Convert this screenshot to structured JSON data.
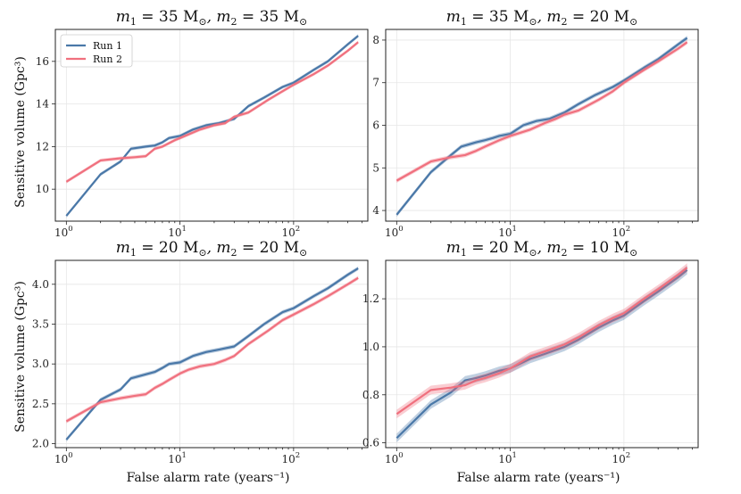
{
  "figure": {
    "xlabel": "False alarm rate (years⁻¹)",
    "ylabel": "Sensitive volume (Gpc³)"
  },
  "legend": [
    {
      "label": "Run 1",
      "color": "#4a78a8"
    },
    {
      "label": "Run 2",
      "color": "#f0707e"
    }
  ],
  "chart_data": [
    {
      "type": "line",
      "title_parts": [
        "m",
        "1",
        " = 35 M",
        "⊙",
        ", m",
        "2",
        " = 35 M",
        "⊙"
      ],
      "xscale": "log",
      "xlim": [
        0.8,
        450
      ],
      "xticks": [
        {
          "v": 1,
          "label": "10"
        },
        {
          "v": 10,
          "label": "10"
        },
        {
          "v": 100,
          "label": "10"
        }
      ],
      "xtick_exps": [
        "0",
        "1",
        "2"
      ],
      "ylim": [
        8.5,
        17.5
      ],
      "yticks": [
        10,
        12,
        14,
        16
      ],
      "yticks_labels": [
        "10",
        "12",
        "14",
        "16"
      ],
      "band": 0.08,
      "series": [
        {
          "name": "Run 1",
          "color": "#4a78a8",
          "x": [
            1,
            2,
            3,
            3.7,
            5,
            6,
            7,
            8,
            10,
            13,
            17,
            22,
            30,
            40,
            55,
            80,
            100,
            150,
            200,
            300,
            370
          ],
          "y": [
            8.75,
            10.7,
            11.3,
            11.9,
            12.0,
            12.05,
            12.2,
            12.4,
            12.5,
            12.8,
            13.0,
            13.1,
            13.3,
            13.9,
            14.3,
            14.8,
            15.0,
            15.6,
            16.0,
            16.8,
            17.2
          ]
        },
        {
          "name": "Run 2",
          "color": "#f0707e",
          "x": [
            1,
            2,
            3,
            4,
            5,
            6,
            7,
            9,
            10,
            15,
            20,
            25,
            30,
            40,
            60,
            80,
            100,
            150,
            200,
            300,
            370
          ],
          "y": [
            10.35,
            11.35,
            11.45,
            11.5,
            11.55,
            11.9,
            12.0,
            12.3,
            12.4,
            12.8,
            13.0,
            13.1,
            13.4,
            13.6,
            14.2,
            14.6,
            14.9,
            15.4,
            15.8,
            16.5,
            16.9
          ]
        }
      ]
    },
    {
      "type": "line",
      "title_parts": [
        "m",
        "1",
        " = 35 M",
        "⊙",
        ", m",
        "2",
        " = 20 M",
        "⊙"
      ],
      "xscale": "log",
      "xlim": [
        0.8,
        450
      ],
      "xticks": [
        {
          "v": 1,
          "label": "10"
        },
        {
          "v": 10,
          "label": "10"
        },
        {
          "v": 100,
          "label": "10"
        }
      ],
      "xtick_exps": [
        "0",
        "1",
        "2"
      ],
      "ylim": [
        3.75,
        8.25
      ],
      "yticks": [
        4,
        5,
        6,
        7,
        8
      ],
      "yticks_labels": [
        "4",
        "5",
        "6",
        "7",
        "8"
      ],
      "band": 0.05,
      "series": [
        {
          "name": "Run 1",
          "color": "#4a78a8",
          "x": [
            1,
            2,
            3,
            3.7,
            5,
            6,
            7,
            8,
            10,
            13,
            17,
            22,
            30,
            40,
            55,
            80,
            100,
            150,
            200,
            300,
            360
          ],
          "y": [
            3.9,
            4.9,
            5.3,
            5.5,
            5.6,
            5.65,
            5.7,
            5.75,
            5.8,
            6.0,
            6.1,
            6.15,
            6.3,
            6.5,
            6.7,
            6.9,
            7.05,
            7.35,
            7.55,
            7.9,
            8.05
          ]
        },
        {
          "name": "Run 2",
          "color": "#f0707e",
          "x": [
            1,
            2,
            3,
            4,
            5,
            6,
            8,
            10,
            15,
            20,
            25,
            30,
            40,
            60,
            80,
            100,
            150,
            200,
            300,
            360
          ],
          "y": [
            4.7,
            5.15,
            5.25,
            5.3,
            5.4,
            5.5,
            5.65,
            5.75,
            5.9,
            6.05,
            6.15,
            6.25,
            6.35,
            6.6,
            6.8,
            7.0,
            7.3,
            7.5,
            7.8,
            7.95
          ]
        }
      ]
    },
    {
      "type": "line",
      "title_parts": [
        "m",
        "1",
        " = 20 M",
        "⊙",
        ", m",
        "2",
        " = 20 M",
        "⊙"
      ],
      "xscale": "log",
      "xlim": [
        0.8,
        450
      ],
      "xticks": [
        {
          "v": 1,
          "label": "10"
        },
        {
          "v": 10,
          "label": "10"
        },
        {
          "v": 100,
          "label": "10"
        }
      ],
      "xtick_exps": [
        "0",
        "1",
        "2"
      ],
      "ylim": [
        1.95,
        4.3
      ],
      "yticks": [
        2.0,
        2.5,
        3.0,
        3.5,
        4.0
      ],
      "yticks_labels": [
        "2.0",
        "2.5",
        "3.0",
        "3.5",
        "4.0"
      ],
      "band": 0.025,
      "series": [
        {
          "name": "Run 1",
          "color": "#4a78a8",
          "x": [
            1,
            2,
            3,
            3.7,
            5,
            6,
            7,
            8,
            10,
            13,
            17,
            22,
            30,
            40,
            55,
            80,
            100,
            150,
            200,
            300,
            370
          ],
          "y": [
            2.05,
            2.55,
            2.68,
            2.82,
            2.87,
            2.9,
            2.95,
            3.0,
            3.02,
            3.1,
            3.15,
            3.18,
            3.22,
            3.35,
            3.5,
            3.65,
            3.7,
            3.85,
            3.95,
            4.12,
            4.2
          ]
        },
        {
          "name": "Run 2",
          "color": "#f0707e",
          "x": [
            1,
            2,
            3,
            4,
            5,
            6,
            7,
            8,
            10,
            12,
            15,
            20,
            25,
            30,
            40,
            60,
            80,
            100,
            150,
            200,
            300,
            370
          ],
          "y": [
            2.28,
            2.52,
            2.57,
            2.6,
            2.62,
            2.7,
            2.75,
            2.8,
            2.88,
            2.93,
            2.97,
            3.0,
            3.05,
            3.1,
            3.25,
            3.42,
            3.55,
            3.62,
            3.75,
            3.85,
            4.0,
            4.08
          ]
        }
      ]
    },
    {
      "type": "line",
      "title_parts": [
        "m",
        "1",
        " = 20 M",
        "⊙",
        ", m",
        "2",
        " = 10 M",
        "⊙"
      ],
      "xscale": "log",
      "xlim": [
        0.8,
        450
      ],
      "xticks": [
        {
          "v": 1,
          "label": "10"
        },
        {
          "v": 10,
          "label": "10"
        },
        {
          "v": 100,
          "label": "10"
        }
      ],
      "xtick_exps": [
        "0",
        "1",
        "2"
      ],
      "ylim": [
        0.58,
        1.36
      ],
      "yticks": [
        0.6,
        0.8,
        1.0,
        1.2
      ],
      "yticks_labels": [
        "0.6",
        "0.8",
        "1.0",
        "1.2"
      ],
      "band": 0.018,
      "series": [
        {
          "name": "Run 1",
          "color": "#4a78a8",
          "x": [
            1,
            2,
            3,
            4,
            5,
            6,
            8,
            10,
            15,
            20,
            30,
            40,
            60,
            80,
            100,
            150,
            200,
            300,
            360
          ],
          "y": [
            0.62,
            0.76,
            0.81,
            0.86,
            0.87,
            0.88,
            0.9,
            0.91,
            0.95,
            0.97,
            1.0,
            1.03,
            1.08,
            1.11,
            1.13,
            1.19,
            1.23,
            1.29,
            1.32
          ]
        },
        {
          "name": "Run 2",
          "color": "#f0707e",
          "x": [
            1,
            2,
            3,
            4,
            5,
            6,
            8,
            10,
            15,
            20,
            30,
            40,
            60,
            80,
            100,
            150,
            200,
            300,
            360
          ],
          "y": [
            0.72,
            0.82,
            0.83,
            0.84,
            0.86,
            0.87,
            0.89,
            0.91,
            0.96,
            0.98,
            1.01,
            1.04,
            1.09,
            1.12,
            1.14,
            1.2,
            1.24,
            1.3,
            1.33
          ]
        }
      ]
    }
  ]
}
